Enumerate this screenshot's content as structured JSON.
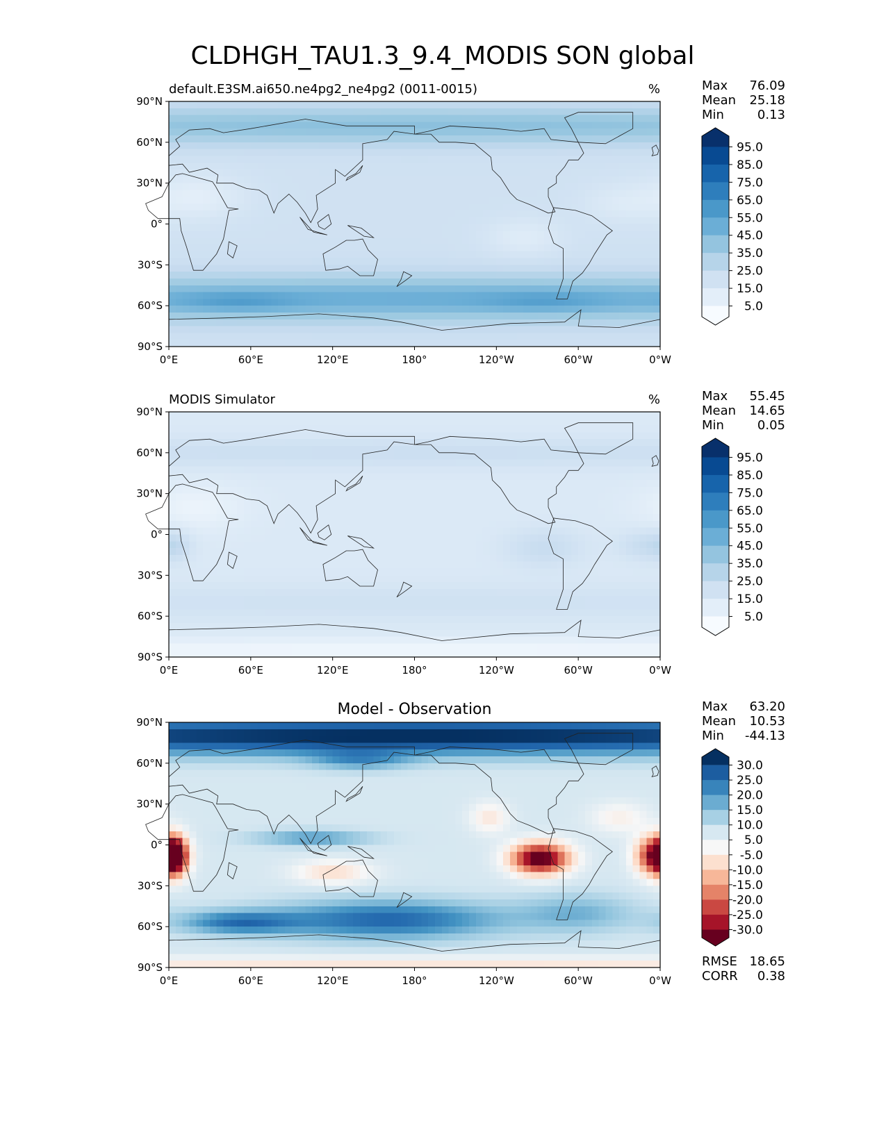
{
  "figure_title": "CLDHGH_TAU1.3_9.4_MODIS SON global",
  "colors": {
    "seq": [
      "#f7fbff",
      "#deebf7",
      "#c6dbef",
      "#9ecae1",
      "#6baed6",
      "#4292c6",
      "#2171b5",
      "#08519c",
      "#08306b"
    ],
    "div": [
      "#67001f",
      "#b2182b",
      "#d6604d",
      "#f4a582",
      "#fddbc7",
      "#f7f7f7",
      "#d1e5f0",
      "#92c5de",
      "#4393c3",
      "#2166ac",
      "#053061"
    ]
  },
  "chart_data": [
    {
      "type": "heatmap",
      "title": "default.E3SM.ai650.ne4pg2_ne4pg2 (0011-0015)",
      "units": "%",
      "stats": [
        {
          "label": "Max",
          "value": "76.09"
        },
        {
          "label": "Mean",
          "value": "25.18"
        },
        {
          "label": "Min",
          "value": "0.13"
        }
      ],
      "xticks": [
        "0°E",
        "60°E",
        "120°E",
        "180°",
        "120°W",
        "60°W",
        "0°W"
      ],
      "yticks": [
        "90°N",
        "60°N",
        "30°N",
        "0°",
        "30°S",
        "60°S",
        "90°S"
      ],
      "xlim": [
        0,
        360
      ],
      "ylim": [
        -90,
        90
      ],
      "colorbar_ticks": [
        "95.0",
        "85.0",
        "75.0",
        "65.0",
        "55.0",
        "45.0",
        "35.0",
        "25.0",
        "15.0",
        "5.0"
      ],
      "grid": false
    },
    {
      "type": "heatmap",
      "title": "MODIS Simulator",
      "units": "%",
      "stats": [
        {
          "label": "Max",
          "value": "55.45"
        },
        {
          "label": "Mean",
          "value": "14.65"
        },
        {
          "label": "Min",
          "value": "0.05"
        }
      ],
      "xticks": [
        "0°E",
        "60°E",
        "120°E",
        "180°",
        "120°W",
        "60°W",
        "0°W"
      ],
      "yticks": [
        "90°N",
        "60°N",
        "30°N",
        "0°",
        "30°S",
        "60°S",
        "90°S"
      ],
      "xlim": [
        0,
        360
      ],
      "ylim": [
        -90,
        90
      ],
      "colorbar_ticks": [
        "95.0",
        "85.0",
        "75.0",
        "65.0",
        "55.0",
        "45.0",
        "35.0",
        "25.0",
        "15.0",
        "5.0"
      ],
      "grid": false
    },
    {
      "type": "heatmap",
      "title": "Model - Observation",
      "stats": [
        {
          "label": "Max",
          "value": "63.20"
        },
        {
          "label": "Mean",
          "value": "10.53"
        },
        {
          "label": "Min",
          "value": "-44.13"
        }
      ],
      "extra_stats": [
        {
          "label": "RMSE",
          "value": "18.65"
        },
        {
          "label": "CORR",
          "value": "0.38"
        }
      ],
      "xticks": [
        "0°E",
        "60°E",
        "120°E",
        "180°",
        "120°W",
        "60°W",
        "0°W"
      ],
      "yticks": [
        "90°N",
        "60°N",
        "30°N",
        "0°",
        "30°S",
        "60°S",
        "90°S"
      ],
      "xlim": [
        0,
        360
      ],
      "ylim": [
        -90,
        90
      ],
      "colorbar_ticks": [
        "30.0",
        "25.0",
        "20.0",
        "15.0",
        "10.0",
        "5.0",
        "-5.0",
        "-10.0",
        "-15.0",
        "-20.0",
        "-25.0",
        "-30.0"
      ],
      "grid": false
    }
  ]
}
